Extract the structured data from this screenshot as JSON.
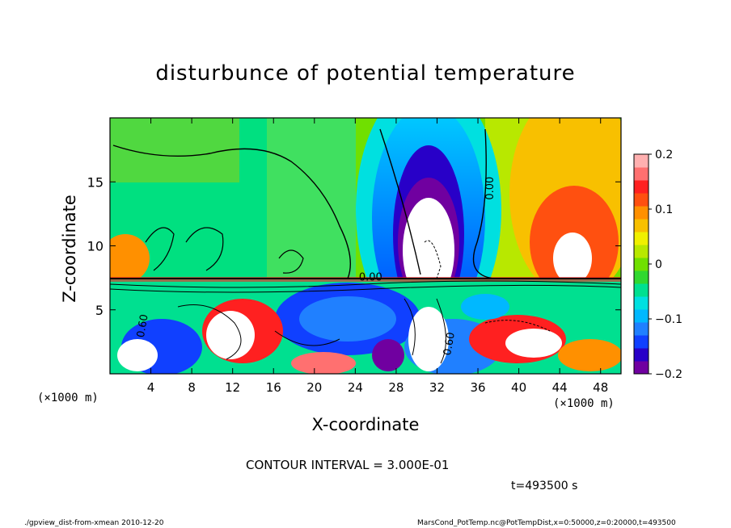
{
  "chart_data": {
    "type": "heatmap",
    "title": "disturbunce of potential temperature",
    "xlabel": "X-coordinate",
    "ylabel": "Z-coordinate",
    "x_unit": "(×1000 m)",
    "x_ticks": [
      4,
      8,
      12,
      16,
      20,
      24,
      28,
      32,
      36,
      40,
      44,
      48
    ],
    "xlim": [
      0,
      50
    ],
    "y_ticks": [
      5,
      10,
      15
    ],
    "ylim": [
      0,
      20
    ],
    "colorbar": {
      "min": -0.2,
      "max": 0.2,
      "ticks": [
        "0.2",
        "0.1",
        "0",
        "−0.1",
        "−0.2"
      ],
      "tick_values": [
        0.2,
        0.1,
        0,
        -0.1,
        -0.2
      ],
      "colors": [
        "#7000a0",
        "#2800c8",
        "#1040ff",
        "#2080ff",
        "#00b8ff",
        "#00e0e0",
        "#00e090",
        "#30d830",
        "#70e000",
        "#b8e800",
        "#f0f000",
        "#f8c000",
        "#ff9000",
        "#ff5010",
        "#ff2020",
        "#ff7070",
        "#ffb0b0"
      ]
    },
    "contour_labels": [
      "0.00",
      "0.00",
      "0.60",
      "0.60"
    ],
    "contour_interval": "CONTOUR INTERVAL = 3.000E-01",
    "time_label": "t=493500 s"
  },
  "footer": {
    "left": "./gpview_dist-from-xmean  2010-12-20",
    "right": "MarsCond_PotTemp.nc@PotTempDist,x=0:50000,z=0:20000,t=493500"
  }
}
